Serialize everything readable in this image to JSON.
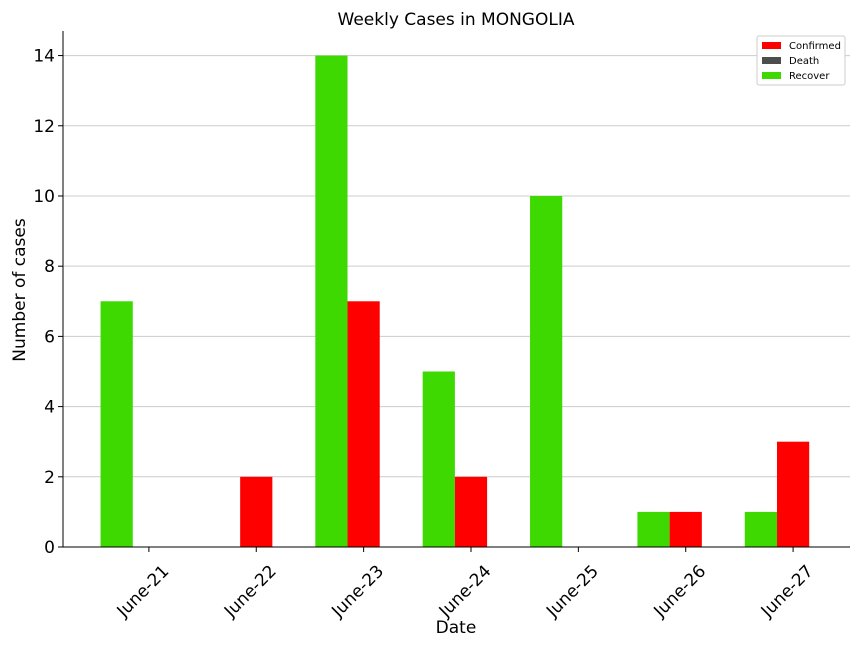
{
  "chart_data": {
    "type": "bar",
    "title": "Weekly Cases in MONGOLIA",
    "xlabel": "Date",
    "ylabel": "Number of cases",
    "categories": [
      "June-21",
      "June-22",
      "June-23",
      "June-24",
      "June-25",
      "June-26",
      "June-27"
    ],
    "series": [
      {
        "name": "Confirmed",
        "color": "#ff0000",
        "values": [
          0,
          2,
          7,
          2,
          0,
          1,
          3
        ]
      },
      {
        "name": "Death",
        "color": "#4d4d4d",
        "values": [
          0,
          0,
          0,
          0,
          0,
          0,
          0
        ]
      },
      {
        "name": "Recover",
        "color": "#3dd900",
        "values": [
          7,
          0,
          14,
          5,
          10,
          1,
          1
        ]
      }
    ],
    "ylim": [
      0,
      14.7
    ],
    "yticks": [
      0,
      2,
      4,
      6,
      8,
      10,
      12,
      14
    ],
    "grid": "horizontal",
    "legend_position": "top-right"
  }
}
